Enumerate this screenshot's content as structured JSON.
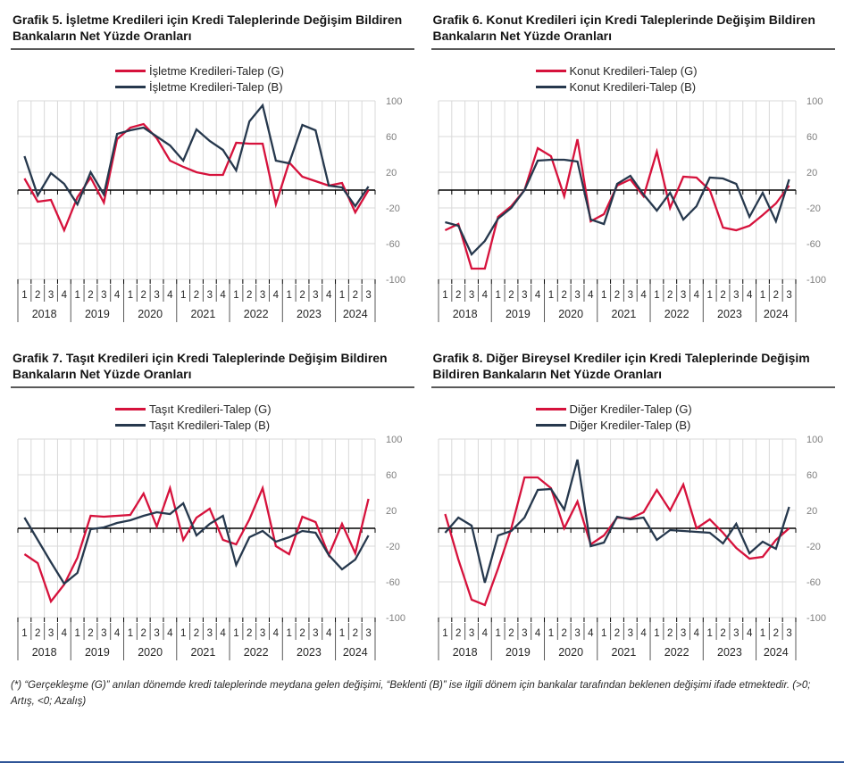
{
  "page": {
    "footnote": "(*) “Gerçekleşme (G)” anılan dönemde kredi taleplerinde meydana gelen değişimi, “Beklenti (B)” ise ilgili dönem için bankalar tarafından beklenen değişimi ifade etmektedir. (>0; Artış, <0; Azalış)",
    "accent_rule_color": "#2F5597"
  },
  "colors": {
    "series_g": "#D6123C",
    "series_b": "#26384D",
    "grid": "#D9D9D9",
    "zero_axis": "#000000",
    "y_tick_label": "#7F7F7F",
    "x_label": "#262626",
    "separator": "#595959"
  },
  "axis": {
    "y_ticks": [
      100,
      60,
      20,
      -20,
      -60,
      -100
    ],
    "y_range": [
      -100,
      100
    ],
    "years": [
      {
        "label": "2018",
        "quarters": [
          "1",
          "2",
          "3",
          "4"
        ]
      },
      {
        "label": "2019",
        "quarters": [
          "1",
          "2",
          "3",
          "4"
        ]
      },
      {
        "label": "2020",
        "quarters": [
          "1",
          "2",
          "3",
          "4"
        ]
      },
      {
        "label": "2021",
        "quarters": [
          "1",
          "2",
          "3",
          "4"
        ]
      },
      {
        "label": "2022",
        "quarters": [
          "1",
          "2",
          "3",
          "4"
        ]
      },
      {
        "label": "2023",
        "quarters": [
          "1",
          "2",
          "3",
          "4"
        ]
      },
      {
        "label": "2024",
        "quarters": [
          "1",
          "2",
          "3"
        ]
      }
    ]
  },
  "chart_data": [
    {
      "type": "line",
      "title": "Grafik 5. İşletme Kredileri için Kredi Taleplerinde Değişim Bildiren Bankaların Net Yüzde Oranları",
      "xlabel": "",
      "ylabel": "",
      "ylim": [
        -100,
        100
      ],
      "grid": true,
      "legend_position": "top-center",
      "x_quarters": "2018Q1-2024Q3",
      "series": [
        {
          "name": "İşletme Kredileri-Talep (G)",
          "color_key": "series_g",
          "values": [
            13,
            -13,
            -11,
            -45,
            -8,
            14,
            -14,
            57,
            70,
            74,
            58,
            33,
            26,
            20,
            17,
            17,
            53,
            52,
            52,
            -16,
            31,
            15,
            10,
            5,
            8,
            -25,
            0
          ]
        },
        {
          "name": "İşletme Kredileri-Talep (B)",
          "color_key": "series_b",
          "values": [
            38,
            -6,
            19,
            7,
            -16,
            20,
            -5,
            63,
            67,
            70,
            60,
            50,
            33,
            68,
            55,
            45,
            22,
            77,
            95,
            33,
            30,
            73,
            67,
            5,
            3,
            -18,
            4
          ]
        }
      ]
    },
    {
      "type": "line",
      "title": "Grafik 6. Konut Kredileri için Kredi Taleplerinde Değişim Bildiren Bankaların Net Yüzde Oranları",
      "xlabel": "",
      "ylabel": "",
      "ylim": [
        -100,
        100
      ],
      "grid": true,
      "legend_position": "top-center",
      "x_quarters": "2018Q1-2024Q3",
      "series": [
        {
          "name": "Konut Kredileri-Talep (G)",
          "color_key": "series_g",
          "values": [
            -45,
            -38,
            -88,
            -88,
            -30,
            -18,
            0,
            47,
            38,
            -7,
            57,
            -35,
            -27,
            5,
            12,
            -7,
            43,
            -20,
            15,
            14,
            0,
            -42,
            -45,
            -40,
            -28,
            -15,
            5
          ]
        },
        {
          "name": "Konut Kredileri-Talep (B)",
          "color_key": "series_b",
          "values": [
            -36,
            -40,
            -72,
            -57,
            -32,
            -20,
            0,
            33,
            34,
            34,
            32,
            -33,
            -38,
            7,
            16,
            -5,
            -23,
            -3,
            -33,
            -18,
            14,
            13,
            7,
            -30,
            -3,
            -35,
            12
          ]
        }
      ]
    },
    {
      "type": "line",
      "title": "Grafik 7. Taşıt Kredileri için Kredi Taleplerinde Değişim Bildiren Bankaların Net Yüzde Oranları",
      "xlabel": "",
      "ylabel": "",
      "ylim": [
        -100,
        100
      ],
      "grid": true,
      "legend_position": "top-center",
      "x_quarters": "2018Q1-2024Q3",
      "series": [
        {
          "name": "Taşıt Kredileri-Talep (G)",
          "color_key": "series_g",
          "values": [
            -29,
            -39,
            -82,
            -63,
            -33,
            14,
            13,
            14,
            15,
            39,
            2,
            45,
            -13,
            12,
            22,
            -13,
            -18,
            10,
            45,
            -20,
            -29,
            13,
            7,
            -30,
            5,
            -28,
            33
          ]
        },
        {
          "name": "Taşıt Kredileri-Talep (B)",
          "color_key": "series_b",
          "values": [
            12,
            -13,
            -38,
            -62,
            -50,
            -1,
            1,
            6,
            9,
            14,
            18,
            16,
            28,
            -8,
            5,
            14,
            -41,
            -10,
            -3,
            -15,
            -10,
            -3,
            -5,
            -30,
            -46,
            -35,
            -8
          ]
        }
      ]
    },
    {
      "type": "line",
      "title": "Grafik 8. Diğer Bireysel Krediler için Kredi Taleplerinde Değişim Bildiren Bankaların Net Yüzde Oranları",
      "xlabel": "",
      "ylabel": "",
      "ylim": [
        -100,
        100
      ],
      "grid": true,
      "legend_position": "top-center",
      "x_quarters": "2018Q1-2024Q3",
      "series": [
        {
          "name": "Diğer Krediler-Talep (G)",
          "color_key": "series_g",
          "values": [
            16,
            -35,
            -80,
            -86,
            -45,
            0,
            57,
            57,
            45,
            0,
            30,
            -18,
            -8,
            12,
            11,
            18,
            43,
            20,
            49,
            0,
            10,
            -5,
            -22,
            -34,
            -32,
            -13,
            0
          ]
        },
        {
          "name": "Diğer Krediler-Talep (B)",
          "color_key": "series_b",
          "values": [
            -5,
            12,
            3,
            -61,
            -8,
            -3,
            12,
            43,
            44,
            21,
            77,
            -20,
            -16,
            13,
            10,
            12,
            -13,
            -2,
            -3,
            -4,
            -5,
            -17,
            5,
            -28,
            -15,
            -23,
            24
          ]
        }
      ]
    }
  ]
}
